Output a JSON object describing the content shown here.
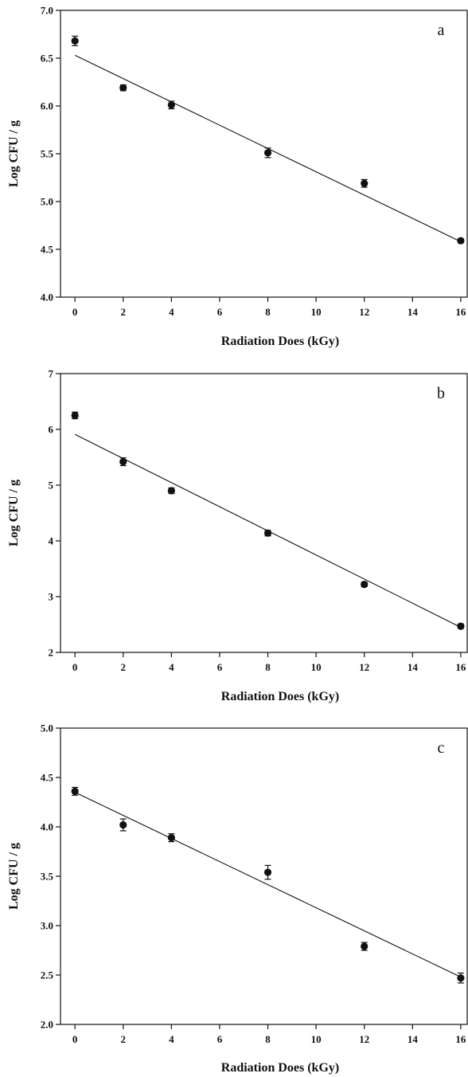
{
  "chart_data": [
    {
      "type": "scatter",
      "panel_label": "a",
      "xlabel": "Radiation Does (kGy)",
      "ylabel": "Log CFU / g",
      "xlim": [
        -0.6,
        16.3
      ],
      "ylim": [
        4.0,
        7.0
      ],
      "xticks": [
        0,
        2,
        4,
        6,
        8,
        10,
        12,
        14,
        16
      ],
      "yticks": [
        4.0,
        4.5,
        5.0,
        5.5,
        6.0,
        6.5,
        7.0
      ],
      "ytick_labels": [
        "4.0",
        "4.5",
        "5.0",
        "5.5",
        "6.0",
        "6.5",
        "7.0"
      ],
      "x": [
        0,
        2,
        4,
        8,
        12,
        16
      ],
      "y": [
        6.68,
        6.19,
        6.01,
        5.51,
        5.19,
        4.59
      ],
      "yerr": [
        0.05,
        0.03,
        0.04,
        0.05,
        0.04,
        0.02
      ],
      "fit_line": {
        "x": [
          0,
          16
        ],
        "y": [
          6.53,
          4.58
        ]
      },
      "grid": false
    },
    {
      "type": "scatter",
      "panel_label": "b",
      "xlabel": "Radiation Does (kGy)",
      "ylabel": "Log CFU / g",
      "xlim": [
        -0.6,
        16.3
      ],
      "ylim": [
        2,
        7
      ],
      "xticks": [
        0,
        2,
        4,
        6,
        8,
        10,
        12,
        14,
        16
      ],
      "yticks": [
        2,
        3,
        4,
        5,
        6,
        7
      ],
      "ytick_labels": [
        "2",
        "3",
        "4",
        "5",
        "6",
        "7"
      ],
      "x": [
        0,
        2,
        4,
        8,
        12,
        16
      ],
      "y": [
        6.25,
        5.42,
        4.9,
        4.14,
        3.22,
        2.47
      ],
      "yerr": [
        0.06,
        0.07,
        0.05,
        0.05,
        0.04,
        0.04
      ],
      "fit_line": {
        "x": [
          0,
          16
        ],
        "y": [
          5.91,
          2.45
        ]
      },
      "grid": false
    },
    {
      "type": "scatter",
      "panel_label": "c",
      "xlabel": "Radiation Does (kGy)",
      "ylabel": "Log CFU / g",
      "xlim": [
        -0.6,
        16.3
      ],
      "ylim": [
        2.0,
        5.0
      ],
      "xticks": [
        0,
        2,
        4,
        6,
        8,
        10,
        12,
        14,
        16
      ],
      "yticks": [
        2.0,
        2.5,
        3.0,
        3.5,
        4.0,
        4.5,
        5.0
      ],
      "ytick_labels": [
        "2.0",
        "2.5",
        "3.0",
        "3.5",
        "4.0",
        "4.5",
        "5.0"
      ],
      "x": [
        0,
        2,
        4,
        8,
        12,
        16
      ],
      "y": [
        4.36,
        4.02,
        3.89,
        3.54,
        2.79,
        2.47
      ],
      "yerr": [
        0.04,
        0.06,
        0.04,
        0.07,
        0.04,
        0.05
      ],
      "fit_line": {
        "x": [
          0,
          16
        ],
        "y": [
          4.35,
          2.48
        ]
      },
      "grid": false
    }
  ]
}
